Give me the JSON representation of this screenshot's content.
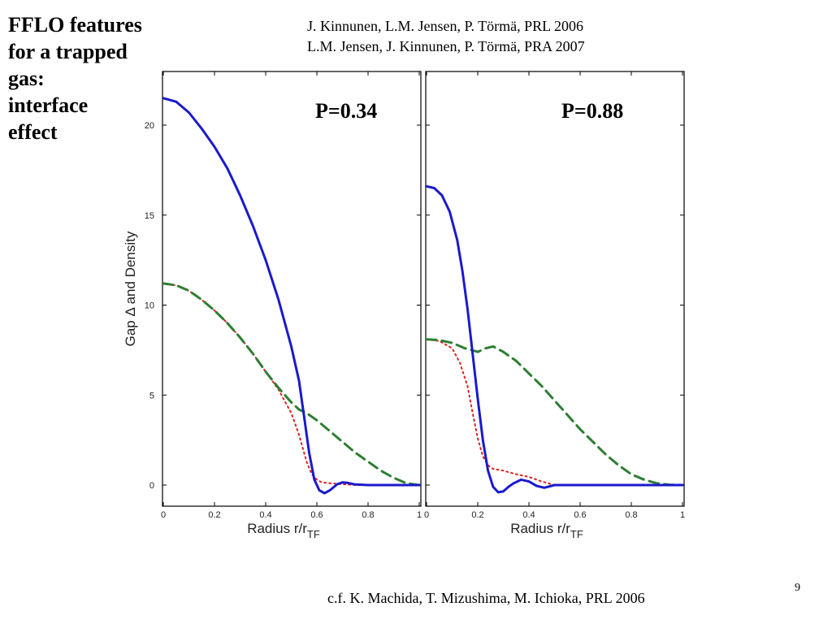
{
  "slide": {
    "title_lines": [
      "FFLO features",
      "for a trapped",
      "gas:",
      "interface",
      "effect"
    ],
    "references": [
      "J. Kinnunen, L.M. Jensen, P. Törmä, PRL 2006",
      "L.M. Jensen, J. Kinnunen, P. Törmä, PRA 2007"
    ],
    "footer": "c.f. K. Machida, T. Mizushima, M. Ichioka, PRL  2006",
    "page_number": "9"
  },
  "colors": {
    "gap": "#1a1acc",
    "density_total": "#2e7d32",
    "density_component": "#dd2222"
  },
  "chart_data": [
    {
      "type": "line",
      "panel_label": "P=0.34",
      "xlabel": "Radius r/r",
      "xlabel_sub": "TF",
      "ylabel": "Gap Δ and Density",
      "xlim": [
        0,
        1
      ],
      "ylim": [
        -1,
        23
      ],
      "xticks": [
        "0",
        "0.2",
        "0.4",
        "0.6",
        "0.8",
        "1"
      ],
      "yticks": [
        "0",
        "5",
        "10",
        "15",
        "20"
      ],
      "series": [
        {
          "style": "solid",
          "x": [
            0.0,
            0.05,
            0.1,
            0.15,
            0.2,
            0.25,
            0.3,
            0.35,
            0.4,
            0.45,
            0.5,
            0.53,
            0.55,
            0.57,
            0.59,
            0.61,
            0.63,
            0.65,
            0.68,
            0.7,
            0.72,
            0.75,
            0.8,
            0.9,
            1.0
          ],
          "y": [
            21.5,
            21.3,
            20.7,
            19.8,
            18.8,
            17.6,
            16.1,
            14.4,
            12.5,
            10.3,
            7.7,
            5.8,
            3.8,
            1.8,
            0.3,
            -0.3,
            -0.45,
            -0.3,
            0.05,
            0.15,
            0.12,
            0.03,
            0.0,
            0.0,
            0.0
          ]
        },
        {
          "style": "dashed",
          "x": [
            0.0,
            0.05,
            0.1,
            0.15,
            0.2,
            0.25,
            0.3,
            0.35,
            0.4,
            0.45,
            0.5,
            0.53,
            0.56,
            0.6,
            0.65,
            0.7,
            0.75,
            0.8,
            0.85,
            0.9,
            0.95,
            1.0
          ],
          "y": [
            11.2,
            11.1,
            10.8,
            10.3,
            9.7,
            9.0,
            8.2,
            7.3,
            6.3,
            5.4,
            4.6,
            4.2,
            4.0,
            3.6,
            3.0,
            2.4,
            1.8,
            1.3,
            0.8,
            0.4,
            0.1,
            0.0
          ]
        },
        {
          "style": "dotted",
          "x": [
            0.0,
            0.05,
            0.1,
            0.15,
            0.2,
            0.25,
            0.3,
            0.35,
            0.4,
            0.45,
            0.5,
            0.53,
            0.56,
            0.58,
            0.6,
            0.62,
            0.65,
            0.7,
            0.75,
            0.8,
            1.0
          ],
          "y": [
            11.2,
            11.1,
            10.8,
            10.3,
            9.7,
            9.0,
            8.2,
            7.3,
            6.3,
            5.3,
            4.0,
            2.8,
            1.3,
            0.6,
            0.3,
            0.15,
            0.1,
            0.05,
            0.0,
            0.0,
            0.0
          ]
        }
      ]
    },
    {
      "type": "line",
      "panel_label": "P=0.88",
      "xlabel": "Radius r/r",
      "xlabel_sub": "TF",
      "ylabel": "",
      "xlim": [
        0,
        1
      ],
      "ylim": [
        -1,
        23
      ],
      "xticks": [
        "0",
        "0.2",
        "0.4",
        "0.6",
        "0.8",
        "1"
      ],
      "yticks": [],
      "series": [
        {
          "style": "solid",
          "x": [
            0.0,
            0.03,
            0.06,
            0.09,
            0.12,
            0.14,
            0.16,
            0.18,
            0.2,
            0.22,
            0.24,
            0.26,
            0.28,
            0.3,
            0.32,
            0.34,
            0.37,
            0.4,
            0.43,
            0.46,
            0.5,
            0.55,
            0.6,
            0.8,
            1.0
          ],
          "y": [
            16.6,
            16.5,
            16.1,
            15.2,
            13.6,
            11.9,
            9.8,
            7.3,
            4.8,
            2.5,
            0.8,
            -0.1,
            -0.4,
            -0.35,
            -0.1,
            0.1,
            0.3,
            0.2,
            -0.05,
            -0.15,
            0.0,
            0.0,
            0.0,
            0.0,
            0.0
          ]
        },
        {
          "style": "dashed",
          "x": [
            0.0,
            0.05,
            0.1,
            0.15,
            0.2,
            0.23,
            0.26,
            0.3,
            0.35,
            0.4,
            0.45,
            0.5,
            0.55,
            0.6,
            0.65,
            0.7,
            0.75,
            0.8,
            0.85,
            0.9,
            0.95,
            1.0
          ],
          "y": [
            8.1,
            8.05,
            7.9,
            7.6,
            7.4,
            7.6,
            7.7,
            7.4,
            6.9,
            6.2,
            5.5,
            4.7,
            3.9,
            3.1,
            2.4,
            1.7,
            1.1,
            0.6,
            0.3,
            0.1,
            0.02,
            0.0
          ]
        },
        {
          "style": "dotted",
          "x": [
            0.0,
            0.05,
            0.1,
            0.13,
            0.16,
            0.18,
            0.2,
            0.22,
            0.24,
            0.26,
            0.3,
            0.35,
            0.4,
            0.45,
            0.5,
            0.6,
            0.8,
            1.0
          ],
          "y": [
            8.1,
            8.0,
            7.6,
            6.8,
            5.5,
            4.0,
            2.6,
            1.6,
            1.1,
            0.9,
            0.8,
            0.6,
            0.45,
            0.2,
            0.0,
            0.0,
            0.0,
            0.0
          ]
        }
      ]
    }
  ]
}
